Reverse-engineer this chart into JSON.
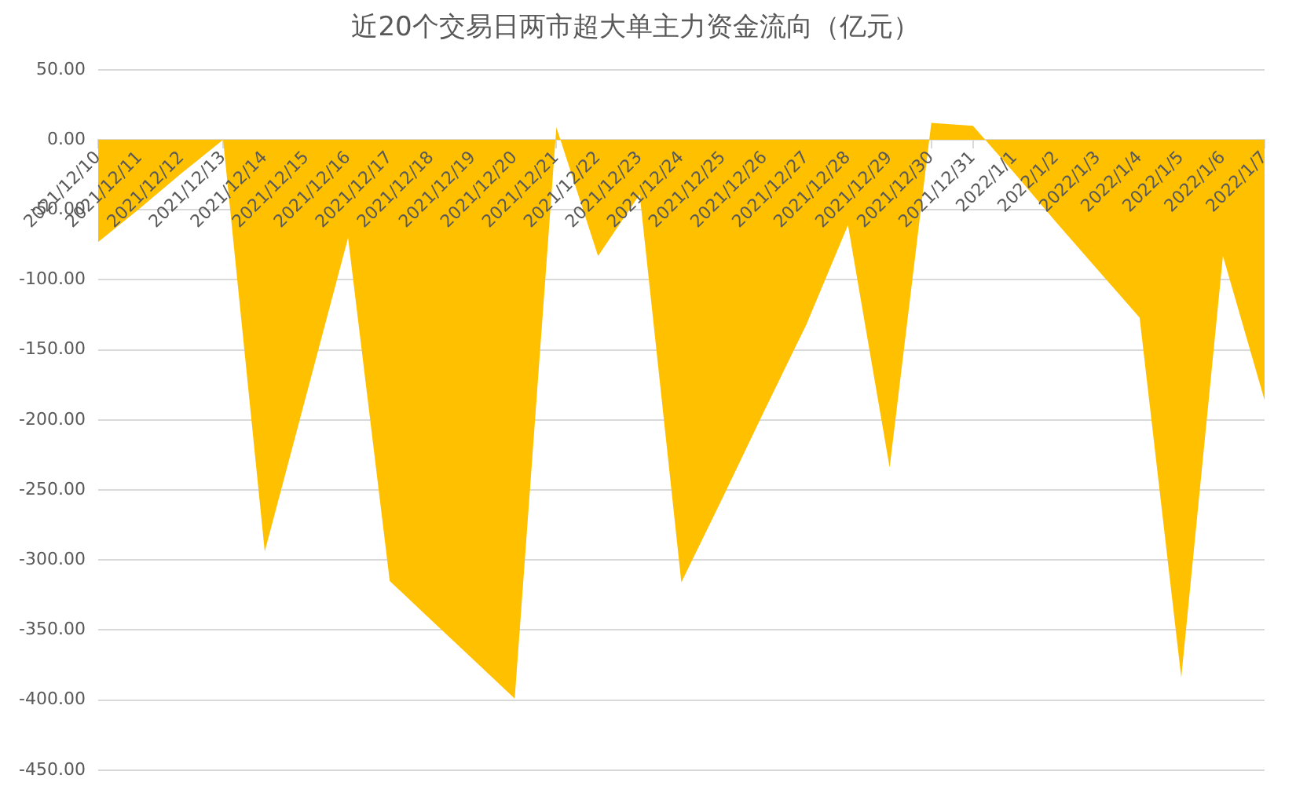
{
  "chart_data": {
    "type": "area",
    "title": "近20个交易日两市超大单主力资金流向（亿元）",
    "categories": [
      "2021/12/10",
      "2021/12/11",
      "2021/12/12",
      "2021/12/13",
      "2021/12/14",
      "2021/12/15",
      "2021/12/16",
      "2021/12/17",
      "2021/12/18",
      "2021/12/19",
      "2021/12/20",
      "2021/12/21",
      "2021/12/22",
      "2021/12/23",
      "2021/12/24",
      "2021/12/25",
      "2021/12/26",
      "2021/12/27",
      "2021/12/28",
      "2021/12/29",
      "2021/12/30",
      "2021/12/31",
      "2022/1/1",
      "2022/1/2",
      "2022/1/3",
      "2022/1/4",
      "2022/1/5",
      "2022/1/6",
      "2022/1/7"
    ],
    "values": [
      -73,
      -49,
      -24,
      0,
      -294,
      -182,
      -70,
      -315,
      -343,
      -371,
      -399,
      9,
      -83,
      -39,
      -316,
      -255,
      -193,
      -132,
      -61,
      -234,
      12,
      10,
      -24,
      -59,
      -93,
      -127,
      -384,
      -83,
      -186
    ],
    "color": "#ffc000",
    "ylim": [
      -450,
      50
    ],
    "yticks": [
      {
        "value": -450,
        "label": "-450.00"
      },
      {
        "value": -400,
        "label": "-400.00"
      },
      {
        "value": -350,
        "label": "-350.00"
      },
      {
        "value": -300,
        "label": "-300.00"
      },
      {
        "value": -250,
        "label": "-250.00"
      },
      {
        "value": -200,
        "label": "-200.00"
      },
      {
        "value": -150,
        "label": "-150.00"
      },
      {
        "value": -100,
        "label": "-100.00"
      },
      {
        "value": -50,
        "label": "-50.00"
      },
      {
        "value": 0,
        "label": "0.00"
      },
      {
        "value": 50,
        "label": "50.00"
      }
    ],
    "grid": "y"
  }
}
